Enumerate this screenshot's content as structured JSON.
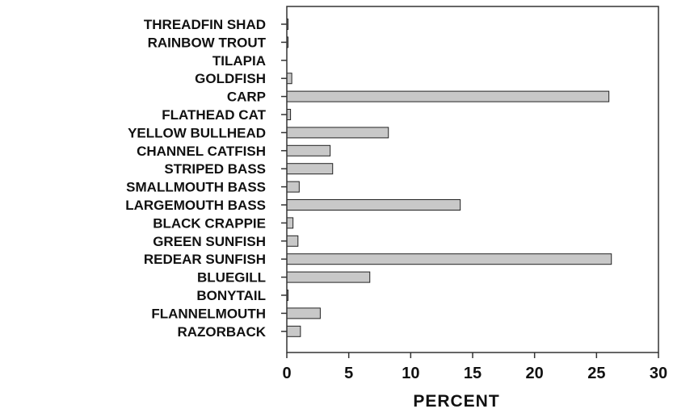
{
  "chart_data": {
    "type": "bar",
    "orientation": "horizontal",
    "title": "",
    "xlabel": "PERCENT",
    "ylabel": "",
    "xlim": [
      0,
      30
    ],
    "x_ticks": [
      0,
      5,
      10,
      15,
      20,
      25,
      30
    ],
    "grid": false,
    "legend": "none",
    "bar_color": "#c8c8c8",
    "bar_edge_color": "#222222",
    "categories": [
      "THREADFIN SHAD",
      "RAINBOW TROUT",
      "TILAPIA",
      "GOLDFISH",
      "CARP",
      "FLATHEAD CAT",
      "YELLOW BULLHEAD",
      "CHANNEL CATFISH",
      "STRIPED BASS",
      "SMALLMOUTH BASS",
      "LARGEMOUTH BASS",
      "BLACK CRAPPIE",
      "GREEN SUNFISH",
      "REDEAR SUNFISH",
      "BLUEGILL",
      "BONYTAIL",
      "FLANNELMOUTH",
      "RAZORBACK"
    ],
    "values": [
      0.1,
      0.1,
      0.0,
      0.4,
      26.0,
      0.3,
      8.2,
      3.5,
      3.7,
      1.0,
      14.0,
      0.5,
      0.9,
      26.2,
      6.7,
      0.1,
      2.7,
      1.1
    ]
  }
}
